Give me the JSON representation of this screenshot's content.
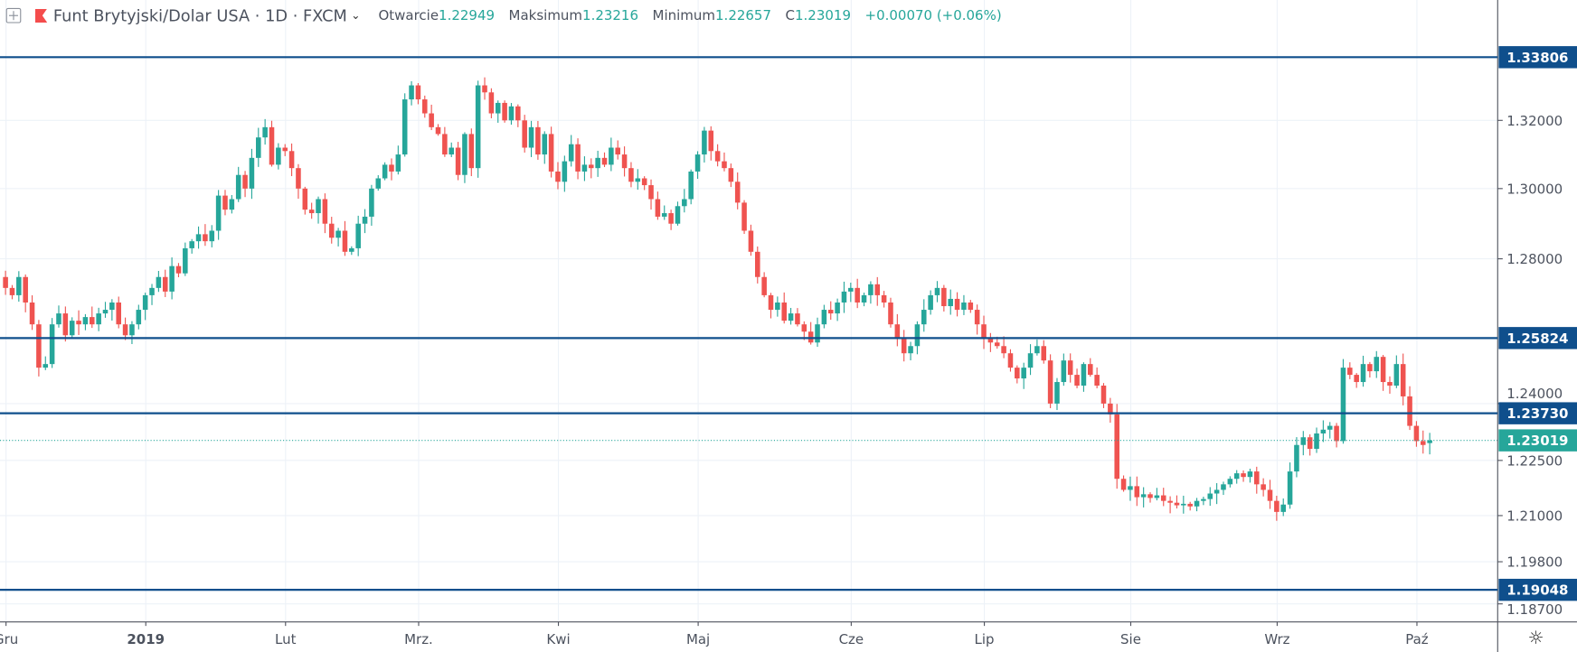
{
  "header": {
    "symbol_title": "Funt Brytyjski/Dolar USA · 1D · FXCM",
    "open_label": "Otwarcie",
    "open_value": "1.22949",
    "high_label": "Maksimum",
    "high_value": "1.23216",
    "low_label": "Minimum",
    "low_value": "1.22657",
    "close_label": "C",
    "close_value": "1.23019",
    "change": "+0.00070 (+0.06%)"
  },
  "colors": {
    "up": "#26a69a",
    "down": "#ef5350",
    "level_line": "#0f4f8c",
    "grid": "#edf2f8",
    "current_price": "#26a69a"
  },
  "chart_data": {
    "type": "candlestick",
    "title": "Funt Brytyjski/Dolar USA 1D FXCM",
    "price_axis_ticks": [
      "1.32000",
      "1.30000",
      "1.28000",
      "1.24000",
      "1.22500",
      "1.21000",
      "1.19800",
      "1.18700"
    ],
    "time_axis_ticks": [
      {
        "label": "Gru",
        "index": 0
      },
      {
        "label": "2019",
        "index": 21
      },
      {
        "label": "Lut",
        "index": 42
      },
      {
        "label": "Mrz.",
        "index": 62
      },
      {
        "label": "Kwi",
        "index": 83
      },
      {
        "label": "Maj",
        "index": 104
      },
      {
        "label": "Cze",
        "index": 127
      },
      {
        "label": "Lip",
        "index": 147
      },
      {
        "label": "Sie",
        "index": 169
      },
      {
        "label": "Wrz",
        "index": 191
      },
      {
        "label": "Paź",
        "index": 212
      }
    ],
    "horizontal_levels": [
      "1.33806",
      "1.25824",
      "1.23730",
      "1.19048"
    ],
    "current_price": "1.23019",
    "last_candle": {
      "open": 1.22949,
      "high": 1.23216,
      "low": 1.22657,
      "close": 1.23019
    },
    "closes": [
      1.272,
      1.27,
      1.275,
      1.268,
      1.262,
      1.25,
      1.251,
      1.262,
      1.265,
      1.259,
      1.263,
      1.262,
      1.264,
      1.262,
      1.265,
      1.266,
      1.268,
      1.262,
      1.259,
      1.262,
      1.266,
      1.27,
      1.272,
      1.275,
      1.271,
      1.278,
      1.276,
      1.283,
      1.285,
      1.287,
      1.285,
      1.288,
      1.298,
      1.294,
      1.297,
      1.304,
      1.3,
      1.309,
      1.315,
      1.318,
      1.307,
      1.312,
      1.311,
      1.306,
      1.3,
      1.294,
      1.293,
      1.297,
      1.29,
      1.286,
      1.288,
      1.282,
      1.283,
      1.29,
      1.292,
      1.3,
      1.303,
      1.307,
      1.305,
      1.31,
      1.326,
      1.33,
      1.326,
      1.322,
      1.318,
      1.316,
      1.31,
      1.312,
      1.304,
      1.316,
      1.306,
      1.33,
      1.328,
      1.322,
      1.325,
      1.32,
      1.324,
      1.32,
      1.312,
      1.318,
      1.31,
      1.316,
      1.305,
      1.302,
      1.308,
      1.313,
      1.305,
      1.307,
      1.306,
      1.309,
      1.307,
      1.312,
      1.31,
      1.306,
      1.302,
      1.303,
      1.301,
      1.297,
      1.292,
      1.293,
      1.29,
      1.295,
      1.297,
      1.305,
      1.31,
      1.317,
      1.311,
      1.308,
      1.306,
      1.302,
      1.296,
      1.288,
      1.282,
      1.275,
      1.27,
      1.266,
      1.268,
      1.263,
      1.265,
      1.262,
      1.26,
      1.257,
      1.262,
      1.266,
      1.265,
      1.268,
      1.271,
      1.272,
      1.268,
      1.27,
      1.273,
      1.27,
      1.268,
      1.262,
      1.258,
      1.254,
      1.256,
      1.262,
      1.266,
      1.27,
      1.272,
      1.267,
      1.269,
      1.266,
      1.268,
      1.266,
      1.262,
      1.258,
      1.257,
      1.256,
      1.254,
      1.25,
      1.247,
      1.25,
      1.254,
      1.256,
      1.252,
      1.24,
      1.246,
      1.252,
      1.248,
      1.245,
      1.251,
      1.248,
      1.245,
      1.24,
      1.237,
      1.22,
      1.217,
      1.218,
      1.215,
      1.2158,
      1.2148,
      1.2155,
      1.214,
      1.2135,
      1.2128,
      1.2132,
      1.2125,
      1.214,
      1.2145,
      1.216,
      1.217,
      1.2185,
      1.22,
      1.2215,
      1.2205,
      1.222,
      1.2185,
      1.217,
      1.214,
      1.211,
      1.213,
      1.222,
      1.229,
      1.231,
      1.228,
      1.232,
      1.233,
      1.234,
      1.23,
      1.25,
      1.248,
      1.246,
      1.251,
      1.249,
      1.253,
      1.246,
      1.245,
      1.251,
      1.242,
      1.234,
      1.23,
      1.229,
      1.23019
    ]
  }
}
